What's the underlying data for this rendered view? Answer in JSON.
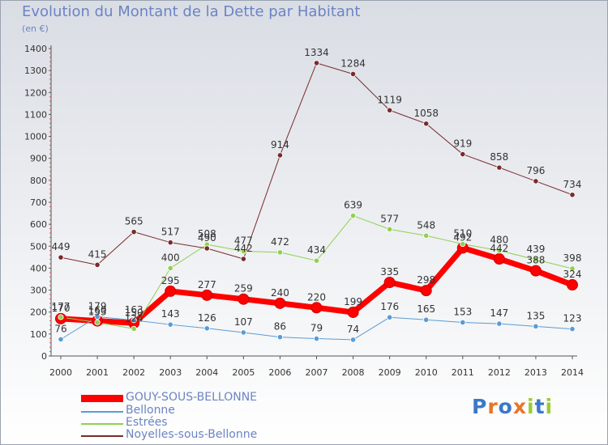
{
  "title": "Evolution du Montant de la Dette par Habitant",
  "unit_label": "(en €)",
  "logo_text": "Proxiti",
  "chart_data": {
    "type": "line",
    "title": "Evolution du Montant de la Dette par Habitant",
    "ylabel": "(en €)",
    "xlabel": "",
    "ylim": [
      0,
      1400
    ],
    "y_ticks": [
      0,
      100,
      200,
      300,
      400,
      500,
      600,
      700,
      800,
      900,
      1000,
      1100,
      1200,
      1300,
      1400
    ],
    "x": [
      "2000",
      "2001",
      "2002",
      "2003",
      "2004",
      "2005",
      "2006",
      "2007",
      "2008",
      "2009",
      "2010",
      "2011",
      "2012",
      "2013",
      "2014"
    ],
    "grid": false,
    "legend_position": "bottom-left",
    "series": [
      {
        "name": "GOUY-SOUS-BELLONNE",
        "color": "#ff0000",
        "values": [
          170,
          160,
          150,
          295,
          277,
          259,
          240,
          220,
          199,
          335,
          298,
          492,
          442,
          388,
          324
        ]
      },
      {
        "name": "Bellonne",
        "color": "#5b9bd5",
        "values": [
          76,
          179,
          163,
          143,
          126,
          107,
          86,
          79,
          74,
          176,
          165,
          153,
          147,
          135,
          123
        ]
      },
      {
        "name": "Estrées",
        "color": "#8fd14f",
        "values": [
          177,
          153,
          124,
          400,
          508,
          477,
          472,
          434,
          639,
          577,
          548,
          510,
          480,
          439,
          398
        ]
      },
      {
        "name": "Noyelles-sous-Bellonne",
        "color": "#7a2b2b",
        "values": [
          449,
          415,
          565,
          517,
          490,
          442,
          914,
          1334,
          1284,
          1119,
          1058,
          919,
          858,
          796,
          734
        ]
      }
    ]
  }
}
